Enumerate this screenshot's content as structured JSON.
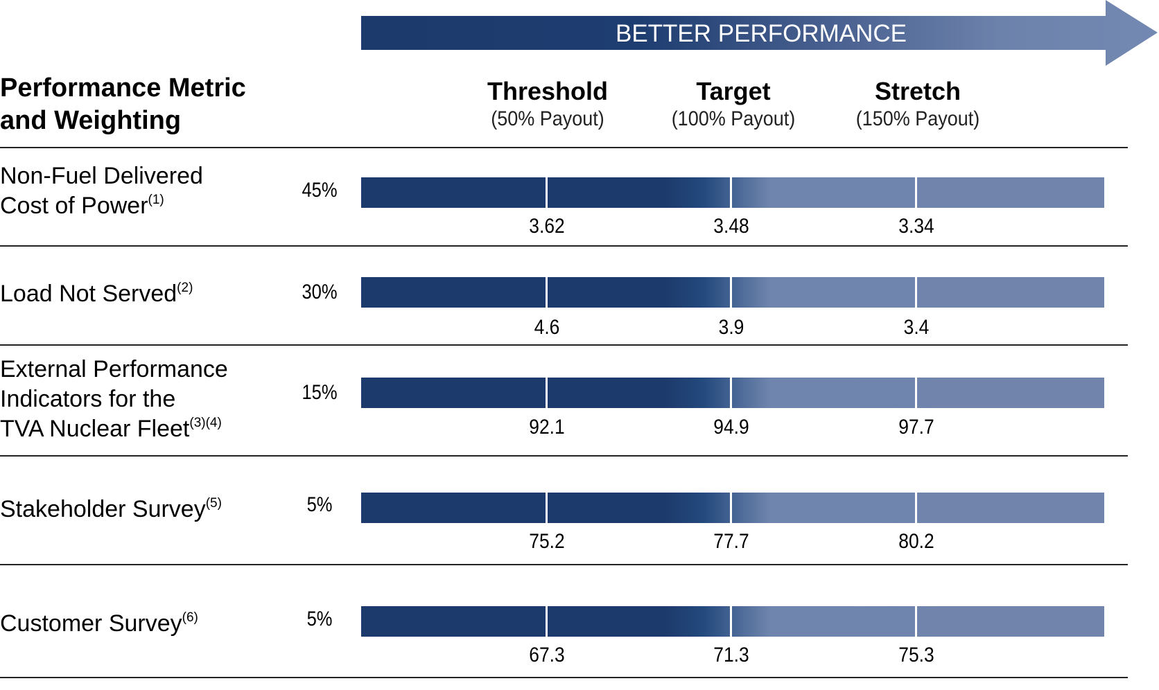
{
  "banner": {
    "text": "BETTER PERFORMANCE"
  },
  "header": {
    "title_line1": "Performance Metric",
    "title_line2": "and Weighting"
  },
  "levels": [
    {
      "name": "Threshold",
      "payout": "(50% Payout)"
    },
    {
      "name": "Target",
      "payout": "(100% Payout)"
    },
    {
      "name": "Stretch",
      "payout": "(150% Payout)"
    }
  ],
  "metrics": [
    {
      "label_lines": [
        "Non-Fuel Delivered",
        "Cost of Power"
      ],
      "footnote": "(1)",
      "weight": "45%",
      "values": [
        "3.62",
        "3.48",
        "3.34"
      ]
    },
    {
      "label_lines": [
        "Load Not Served"
      ],
      "footnote": "(2)",
      "weight": "30%",
      "values": [
        "4.6",
        "3.9",
        "3.4"
      ]
    },
    {
      "label_lines": [
        "External Performance",
        "Indicators for the",
        "TVA Nuclear Fleet"
      ],
      "footnote": "(3)(4)",
      "weight": "15%",
      "values": [
        "92.1",
        "94.9",
        "97.7"
      ]
    },
    {
      "label_lines": [
        "Stakeholder Survey"
      ],
      "footnote": "(5)",
      "weight": "5%",
      "values": [
        "75.2",
        "77.7",
        "80.2"
      ]
    },
    {
      "label_lines": [
        "Customer Survey"
      ],
      "footnote": "(6)",
      "weight": "5%",
      "values": [
        "67.3",
        "71.3",
        "75.3"
      ]
    }
  ],
  "chart_data": {
    "type": "table",
    "columns": [
      "Threshold",
      "Target",
      "Stretch"
    ],
    "column_payouts": [
      "(50% Payout)",
      "(100% Payout)",
      "(150% Payout)"
    ],
    "rows": [
      {
        "metric": "Non-Fuel Delivered Cost of Power",
        "weight": 45,
        "threshold": 3.62,
        "target": 3.48,
        "stretch": 3.34
      },
      {
        "metric": "Load Not Served",
        "weight": 30,
        "threshold": 4.6,
        "target": 3.9,
        "stretch": 3.4
      },
      {
        "metric": "External Performance Indicators for the TVA Nuclear Fleet",
        "weight": 15,
        "threshold": 92.1,
        "target": 94.9,
        "stretch": 97.7
      },
      {
        "metric": "Stakeholder Survey",
        "weight": 5,
        "threshold": 75.2,
        "target": 77.7,
        "stretch": 80.2
      },
      {
        "metric": "Customer Survey",
        "weight": 5,
        "threshold": 67.3,
        "target": 71.3,
        "stretch": 75.3
      }
    ]
  },
  "colors": {
    "dark_navy": "#1d3a6c",
    "light_slate": "#7084ac"
  }
}
